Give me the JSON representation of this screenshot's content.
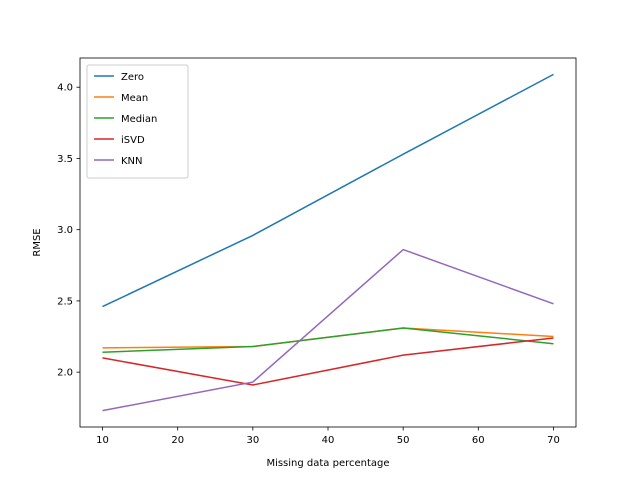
{
  "chart_data": {
    "type": "line",
    "xlabel": "Missing data percentage",
    "ylabel": "RMSE",
    "x": [
      10,
      30,
      50,
      70
    ],
    "xlim": [
      7,
      73
    ],
    "ylim": [
      1.615,
      4.205
    ],
    "xticks": [
      10,
      20,
      30,
      40,
      50,
      60,
      70
    ],
    "yticks": [
      "2.0",
      "2.5",
      "3.0",
      "3.5",
      "4.0"
    ],
    "grid": false,
    "legend_position": "top-left",
    "series": [
      {
        "name": "Zero",
        "color": "#1f77b4",
        "values": [
          2.46,
          2.96,
          3.53,
          4.09
        ]
      },
      {
        "name": "Mean",
        "color": "#ff7f0e",
        "values": [
          2.17,
          2.18,
          2.31,
          2.25
        ]
      },
      {
        "name": "Median",
        "color": "#2ca02c",
        "values": [
          2.14,
          2.18,
          2.31,
          2.2
        ]
      },
      {
        "name": "iSVD",
        "color": "#d62728",
        "values": [
          2.1,
          1.91,
          2.12,
          2.24
        ]
      },
      {
        "name": "KNN",
        "color": "#9467bd",
        "values": [
          1.73,
          1.93,
          2.86,
          2.48
        ]
      }
    ]
  }
}
